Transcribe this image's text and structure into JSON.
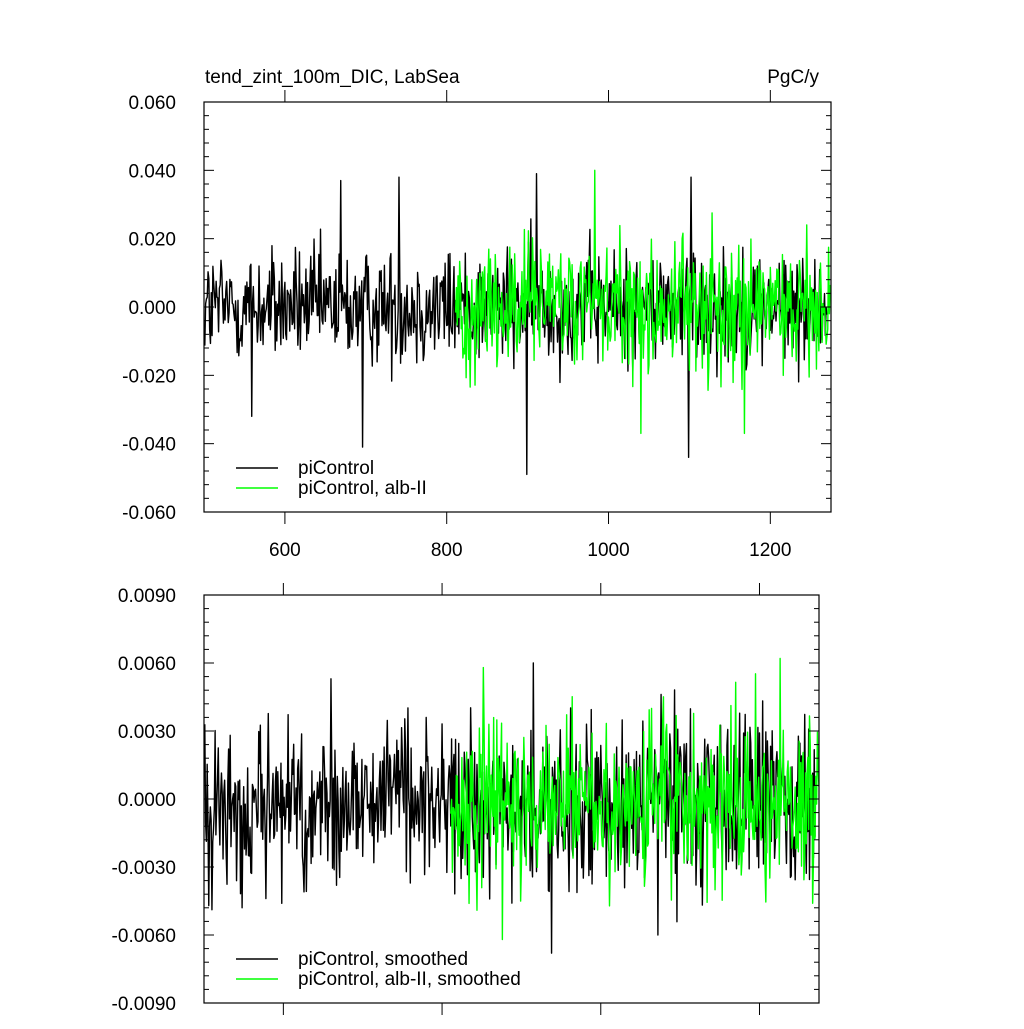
{
  "colors": {
    "frame": "#000000",
    "background": "#ffffff"
  },
  "chart_data": [
    {
      "type": "line",
      "title": "tend_zint_100m_DIC, LabSea",
      "units": "PgC/y",
      "xlim": [
        500,
        1275
      ],
      "ylim": [
        -0.06,
        0.06
      ],
      "xticks": [
        600,
        800,
        1000,
        1200
      ],
      "xtick_labels": [
        "600",
        "800",
        "1000",
        "1200"
      ],
      "yticks": [
        -0.06,
        -0.04,
        -0.02,
        0.0,
        0.02,
        0.04,
        0.06
      ],
      "ytick_labels": [
        "-0.060",
        "-0.040",
        "-0.020",
        "0.000",
        "0.020",
        "0.040",
        "0.060"
      ],
      "grid": false,
      "legend_position": "bottom-left",
      "series": [
        {
          "name": "piControl",
          "color": "#000000",
          "x_start": 501,
          "x_end": 1270,
          "mean": 0.0,
          "amplitude": 0.016,
          "extremes": [
            [
              559,
              -0.032
            ],
            [
              669,
              0.037
            ],
            [
              696,
              -0.041
            ],
            [
              741,
              0.038
            ],
            [
              899,
              -0.049
            ],
            [
              911,
              0.039
            ],
            [
              1099,
              -0.044
            ],
            [
              1102,
              0.038
            ]
          ]
        },
        {
          "name": "piControl, alb-II",
          "color": "#00ff00",
          "x_start": 811,
          "x_end": 1275,
          "mean": 0.0,
          "amplitude": 0.019,
          "extremes": [
            [
              983,
              0.04
            ],
            [
              1040,
              -0.037
            ],
            [
              1168,
              -0.037
            ],
            [
              1245,
              0.024
            ]
          ]
        }
      ]
    },
    {
      "type": "line",
      "xlim": [
        500,
        1275
      ],
      "ylim": [
        -0.009,
        0.009
      ],
      "xticks": [
        600,
        800,
        1000,
        1200
      ],
      "yticks": [
        -0.009,
        -0.006,
        -0.003,
        0.0,
        0.003,
        0.006,
        0.009
      ],
      "ytick_labels": [
        "-0.0090",
        "-0.0060",
        "-0.0030",
        "0.0000",
        "0.0030",
        "0.0060",
        "0.0090"
      ],
      "grid": false,
      "legend_position": "bottom-left",
      "series": [
        {
          "name": "piControl, smoothed",
          "color": "#000000",
          "x_start": 501,
          "x_end": 1270,
          "mean": -0.0002,
          "amplitude": 0.0035,
          "extremes": [
            [
              548,
              -0.0048
            ],
            [
              660,
              0.0053
            ],
            [
              915,
              0.006
            ],
            [
              938,
              -0.0068
            ],
            [
              1072,
              -0.006
            ]
          ]
        },
        {
          "name": "piControl, alb-II, smoothed",
          "color": "#00ff00",
          "x_start": 811,
          "x_end": 1275,
          "mean": 0.0,
          "amplitude": 0.0036,
          "extremes": [
            [
              852,
              0.0058
            ],
            [
              876,
              -0.0062
            ],
            [
              1226,
              0.0062
            ],
            [
              1267,
              -0.0046
            ]
          ]
        }
      ]
    }
  ]
}
